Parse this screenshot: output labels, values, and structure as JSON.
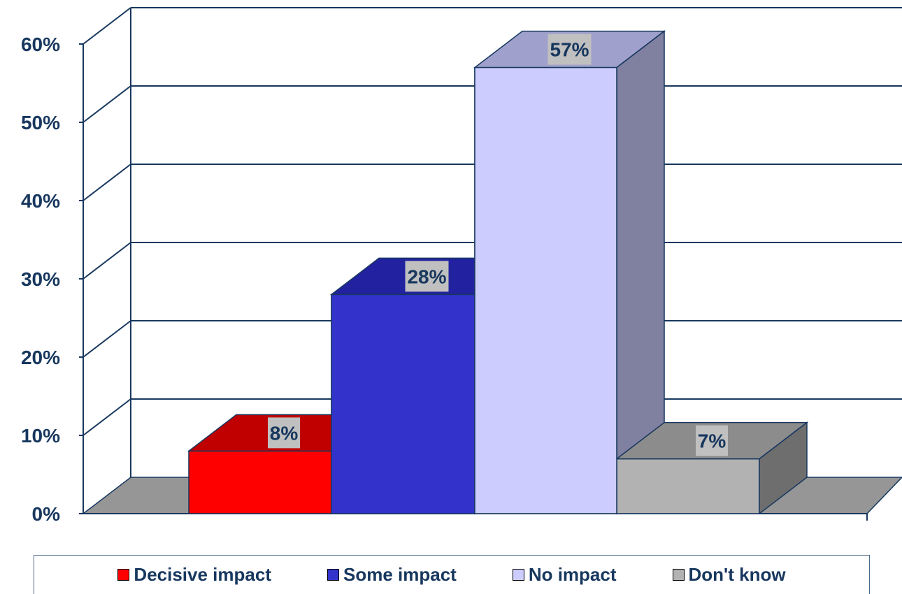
{
  "chart_data": {
    "type": "bar",
    "categories": [
      "Decisive impact",
      "Some impact",
      "No impact",
      "Don't know"
    ],
    "values": [
      8,
      28,
      57,
      7
    ],
    "value_labels": [
      "8%",
      "28%",
      "57%",
      "7%"
    ],
    "ylim": [
      0,
      60
    ],
    "yticks": [
      "0%",
      "10%",
      "20%",
      "30%",
      "40%",
      "50%",
      "60%"
    ],
    "grid": true,
    "legend": "bottom",
    "colors": {
      "front": [
        "#ff0000",
        "#3333cc",
        "#ccccff",
        "#b2b2b2"
      ],
      "top": [
        "#c00000",
        "#2222a0",
        "#a0a0cc",
        "#8c8c8c"
      ],
      "side": [
        "#a00000",
        "#1a1a80",
        "#8080a0",
        "#6e6e6e"
      ],
      "floor": "#969696",
      "axis": "#17375e",
      "label_bg": "#c0c0c0"
    }
  }
}
